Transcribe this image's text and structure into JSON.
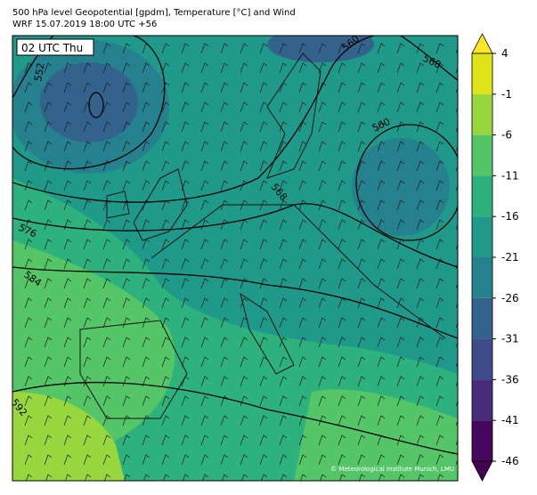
{
  "title": [
    "500 hPa level Geopotential [gpdm], Temperature [°C] and Wind",
    "WRF 15.07.2019 18:00 UTC +56"
  ],
  "time_label": "02 UTC Thu",
  "contour_labels": [
    552,
    560,
    560,
    568,
    568,
    576,
    584,
    592
  ],
  "copyright": "© Meteorological Institute Munich, LMU",
  "colorbar": {
    "ticks": [
      4,
      -1,
      -6,
      -11,
      -16,
      -21,
      -26,
      -31,
      -36,
      -41,
      -46
    ],
    "colors": [
      "#dfe318",
      "#98d83e",
      "#55c667",
      "#2db27d",
      "#1f998a",
      "#26818e",
      "#33638d",
      "#3e4c8a",
      "#472c7a",
      "#46085c"
    ],
    "over_color": "#fde725",
    "under_color": "#440154"
  }
}
